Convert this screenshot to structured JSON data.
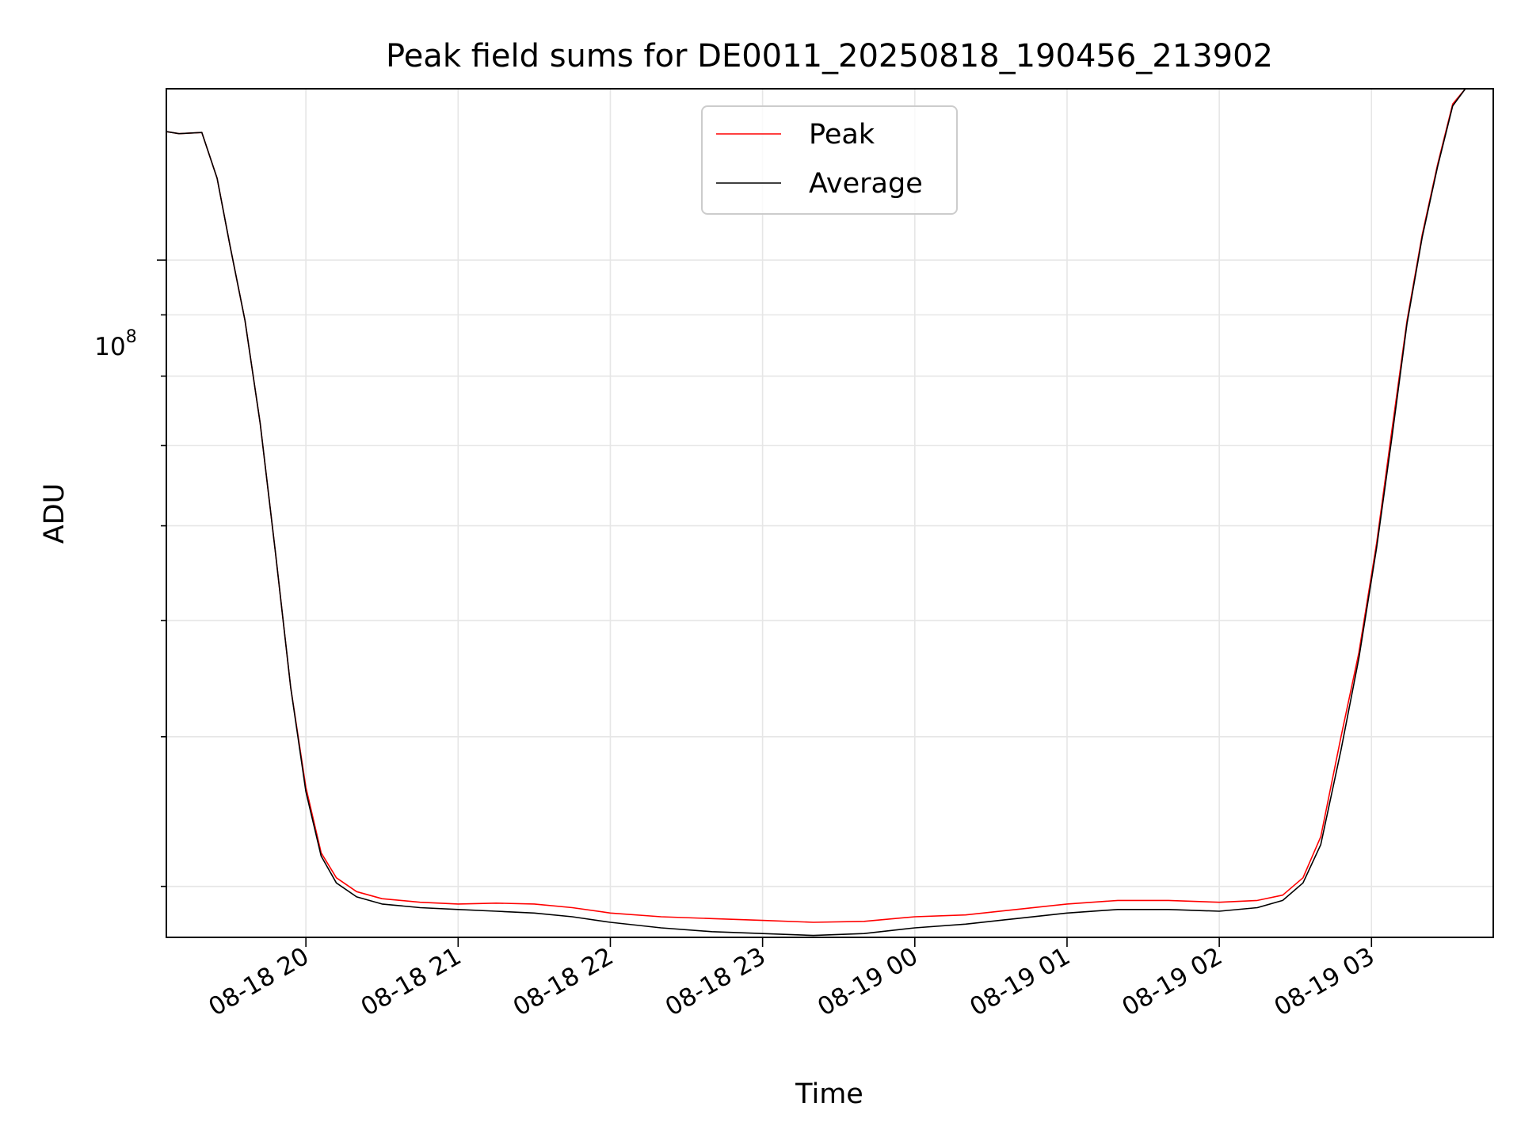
{
  "chart_data": {
    "type": "line",
    "title": "Peak field sums for DE0011_20250818_190456_213902",
    "xlabel": "Time",
    "ylabel": "ADU",
    "yscale": "log",
    "grid": true,
    "legend_position": "top-center",
    "x_ticks": [
      "08-18 20",
      "08-18 21",
      "08-18 22",
      "08-18 23",
      "08-19 00",
      "08-19 01",
      "08-19 02",
      "08-19 03"
    ],
    "y_tick_major": {
      "base": "10",
      "exponent": "8"
    },
    "xlim": [
      "2025-08-18 19:05",
      "2025-08-19 03:48"
    ],
    "ylim": [
      27200000,
      139000000
    ],
    "series": [
      {
        "name": "Peak",
        "color": "#ff0000",
        "points": [
          [
            "2025-08-18 19:05",
            128000000
          ],
          [
            "2025-08-18 19:10",
            127500000
          ],
          [
            "2025-08-18 19:19",
            127800000
          ],
          [
            "2025-08-18 19:25",
            117000000
          ],
          [
            "2025-08-18 19:30",
            103000000
          ],
          [
            "2025-08-18 19:36",
            89000000
          ],
          [
            "2025-08-18 19:42",
            73000000
          ],
          [
            "2025-08-18 19:48",
            57000000
          ],
          [
            "2025-08-18 19:54",
            44000000
          ],
          [
            "2025-08-18 20:00",
            36300000
          ],
          [
            "2025-08-18 20:06",
            32000000
          ],
          [
            "2025-08-18 20:12",
            30500000
          ],
          [
            "2025-08-18 20:20",
            29700000
          ],
          [
            "2025-08-18 20:30",
            29300000
          ],
          [
            "2025-08-18 20:45",
            29100000
          ],
          [
            "2025-08-18 21:00",
            29000000
          ],
          [
            "2025-08-18 21:15",
            29050000
          ],
          [
            "2025-08-18 21:30",
            29000000
          ],
          [
            "2025-08-18 21:45",
            28800000
          ],
          [
            "2025-08-18 22:00",
            28500000
          ],
          [
            "2025-08-18 22:20",
            28300000
          ],
          [
            "2025-08-18 22:40",
            28200000
          ],
          [
            "2025-08-18 23:00",
            28100000
          ],
          [
            "2025-08-18 23:20",
            28000000
          ],
          [
            "2025-08-18 23:40",
            28050000
          ],
          [
            "2025-08-19 00:00",
            28300000
          ],
          [
            "2025-08-19 00:20",
            28400000
          ],
          [
            "2025-08-19 00:40",
            28700000
          ],
          [
            "2025-08-19 01:00",
            29000000
          ],
          [
            "2025-08-19 01:20",
            29200000
          ],
          [
            "2025-08-19 01:40",
            29200000
          ],
          [
            "2025-08-19 02:00",
            29100000
          ],
          [
            "2025-08-19 02:15",
            29200000
          ],
          [
            "2025-08-19 02:25",
            29500000
          ],
          [
            "2025-08-19 02:33",
            30500000
          ],
          [
            "2025-08-19 02:40",
            33000000
          ],
          [
            "2025-08-19 02:48",
            40000000
          ],
          [
            "2025-08-19 02:55",
            47000000
          ],
          [
            "2025-08-19 03:02",
            58000000
          ],
          [
            "2025-08-19 03:08",
            72000000
          ],
          [
            "2025-08-19 03:14",
            89000000
          ],
          [
            "2025-08-19 03:20",
            105000000
          ],
          [
            "2025-08-19 03:26",
            120000000
          ],
          [
            "2025-08-19 03:32",
            135000000
          ],
          [
            "2025-08-19 03:37",
            139000000
          ]
        ]
      },
      {
        "name": "Average",
        "color": "#000000",
        "points": [
          [
            "2025-08-18 19:05",
            128000000
          ],
          [
            "2025-08-18 19:10",
            127500000
          ],
          [
            "2025-08-18 19:19",
            127800000
          ],
          [
            "2025-08-18 19:25",
            117000000
          ],
          [
            "2025-08-18 19:30",
            103000000
          ],
          [
            "2025-08-18 19:36",
            89000000
          ],
          [
            "2025-08-18 19:42",
            73000000
          ],
          [
            "2025-08-18 19:48",
            57000000
          ],
          [
            "2025-08-18 19:54",
            44000000
          ],
          [
            "2025-08-18 20:00",
            36000000
          ],
          [
            "2025-08-18 20:06",
            31800000
          ],
          [
            "2025-08-18 20:12",
            30200000
          ],
          [
            "2025-08-18 20:20",
            29400000
          ],
          [
            "2025-08-18 20:30",
            29000000
          ],
          [
            "2025-08-18 20:45",
            28800000
          ],
          [
            "2025-08-18 21:00",
            28700000
          ],
          [
            "2025-08-18 21:15",
            28600000
          ],
          [
            "2025-08-18 21:30",
            28500000
          ],
          [
            "2025-08-18 21:45",
            28300000
          ],
          [
            "2025-08-18 22:00",
            28000000
          ],
          [
            "2025-08-18 22:20",
            27700000
          ],
          [
            "2025-08-18 22:40",
            27500000
          ],
          [
            "2025-08-18 23:00",
            27400000
          ],
          [
            "2025-08-18 23:20",
            27300000
          ],
          [
            "2025-08-18 23:40",
            27400000
          ],
          [
            "2025-08-19 00:00",
            27700000
          ],
          [
            "2025-08-19 00:20",
            27900000
          ],
          [
            "2025-08-19 00:40",
            28200000
          ],
          [
            "2025-08-19 01:00",
            28500000
          ],
          [
            "2025-08-19 01:20",
            28700000
          ],
          [
            "2025-08-19 01:40",
            28700000
          ],
          [
            "2025-08-19 02:00",
            28600000
          ],
          [
            "2025-08-19 02:15",
            28800000
          ],
          [
            "2025-08-19 02:25",
            29200000
          ],
          [
            "2025-08-19 02:33",
            30200000
          ],
          [
            "2025-08-19 02:40",
            32500000
          ],
          [
            "2025-08-19 02:48",
            39000000
          ],
          [
            "2025-08-19 02:55",
            46500000
          ],
          [
            "2025-08-19 03:02",
            57500000
          ],
          [
            "2025-08-19 03:08",
            71000000
          ],
          [
            "2025-08-19 03:14",
            88500000
          ],
          [
            "2025-08-19 03:20",
            104500000
          ],
          [
            "2025-08-19 03:26",
            119500000
          ],
          [
            "2025-08-19 03:32",
            134500000
          ],
          [
            "2025-08-19 03:37",
            139000000
          ]
        ]
      }
    ]
  }
}
